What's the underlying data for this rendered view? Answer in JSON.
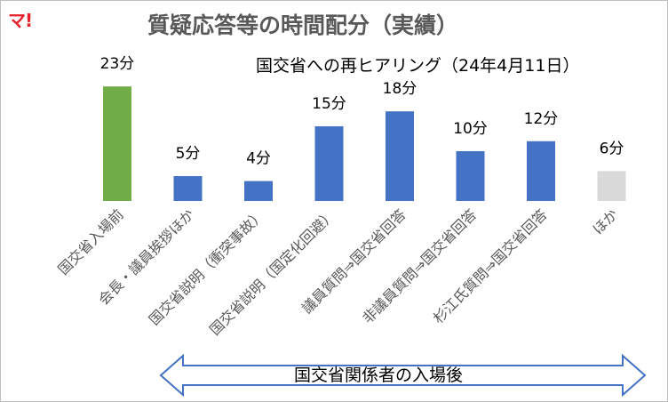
{
  "logo_text": "マ!",
  "span_label": "国交省関係者の入場後",
  "chart_data": {
    "type": "bar",
    "title": "質疑応答等の時間配分（実績）",
    "subtitle": "国交省への再ヒアリング（24年4月11日）",
    "categories": [
      "国交省入場前",
      "会長・議員挨拶ほか",
      "国交省説明（衝突事故）",
      "国交省説明（国定化回避）",
      "議員質問⇒国交省回答",
      "非議員質問⇒国交省回答",
      "杉江氏質問⇒国交省回答",
      "ほか"
    ],
    "values": [
      23,
      5,
      4,
      15,
      18,
      10,
      12,
      6
    ],
    "data_labels": [
      "23分",
      "5分",
      "4分",
      "15分",
      "18分",
      "10分",
      "12分",
      "6分"
    ],
    "colors": [
      "#70ad47",
      "#4472c4",
      "#4472c4",
      "#4472c4",
      "#4472c4",
      "#4472c4",
      "#4472c4",
      "#d9d9d9"
    ],
    "ylim": [
      0,
      25
    ],
    "grid": false,
    "legend": false
  }
}
